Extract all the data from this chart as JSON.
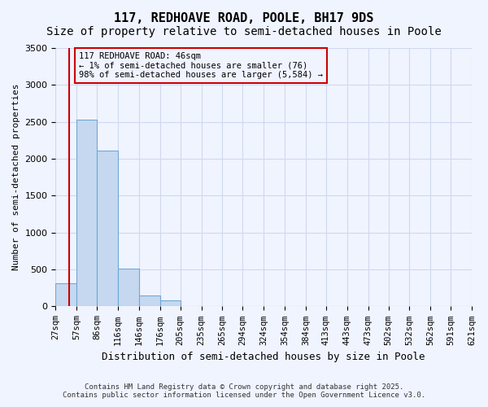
{
  "title_line1": "117, REDHOAVE ROAD, POOLE, BH17 9DS",
  "title_line2": "Size of property relative to semi-detached houses in Poole",
  "xlabel": "Distribution of semi-detached houses by size in Poole",
  "ylabel": "Number of semi-detached properties",
  "annotation_title": "117 REDHOAVE ROAD: 46sqm",
  "annotation_line2": "← 1% of semi-detached houses are smaller (76)",
  "annotation_line3": "98% of semi-detached houses are larger (5,584) →",
  "footer_line1": "Contains HM Land Registry data © Crown copyright and database right 2025.",
  "footer_line2": "Contains public sector information licensed under the Open Government Licence v3.0.",
  "bar_color": "#c5d8f0",
  "bar_edge_color": "#6fa8d6",
  "vline_color": "#cc0000",
  "annotation_box_edge": "#cc0000",
  "background_color": "#f0f4ff",
  "bins": [
    27,
    57,
    86,
    116,
    146,
    176,
    205,
    235,
    265,
    294,
    324,
    354,
    384,
    413,
    443,
    473,
    502,
    532,
    562,
    591,
    621
  ],
  "bin_labels": [
    "27sqm",
    "57sqm",
    "86sqm",
    "116sqm",
    "146sqm",
    "176sqm",
    "205sqm",
    "235sqm",
    "265sqm",
    "294sqm",
    "324sqm",
    "354sqm",
    "384sqm",
    "413sqm",
    "443sqm",
    "473sqm",
    "502sqm",
    "532sqm",
    "562sqm",
    "591sqm",
    "621sqm"
  ],
  "values": [
    310,
    2530,
    2110,
    510,
    150,
    80,
    10,
    0,
    0,
    0,
    0,
    0,
    0,
    0,
    0,
    0,
    0,
    0,
    0,
    0
  ],
  "property_size": 46,
  "vline_x": 46,
  "ylim": [
    0,
    3500
  ],
  "yticks": [
    0,
    500,
    1000,
    1500,
    2000,
    2500,
    3000,
    3500
  ],
  "grid_color": "#d0d8f0",
  "title_fontsize": 11,
  "subtitle_fontsize": 10
}
